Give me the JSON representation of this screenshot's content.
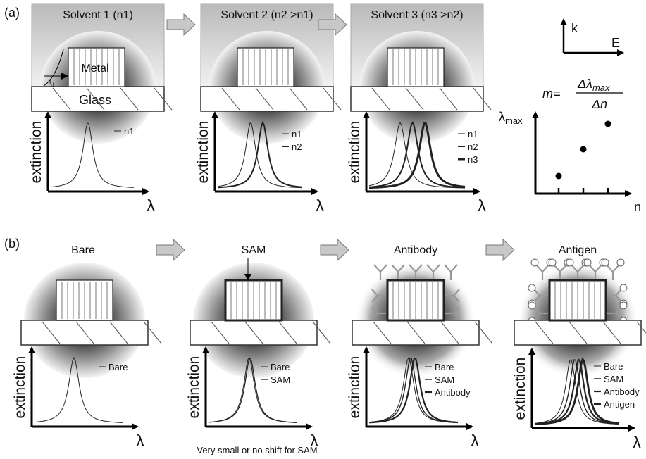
{
  "panel_a": {
    "label": "(a)",
    "metal_label": "Metal",
    "glass_label": "Glass",
    "decay_length": "l",
    "decay_length_sub": "d",
    "steps": [
      {
        "title": "Solvent 1 (n1)",
        "y_label": "extinction",
        "x_label": "λ",
        "legend": [
          "n1"
        ]
      },
      {
        "title": "Solvent 2 (n2 >n1)",
        "y_label": "extinction",
        "x_label": "λ",
        "legend": [
          "n1",
          "n2"
        ]
      },
      {
        "title": "Solvent 3 (n3 >n2)",
        "y_label": "extinction",
        "x_label": "λ",
        "legend": [
          "n1",
          "n2",
          "n3"
        ]
      }
    ],
    "axes": {
      "k": "k",
      "E": "E"
    },
    "formula": {
      "lhs": "m=",
      "num": "Δλ",
      "num_sub": "max",
      "den": "Δn"
    },
    "plot": {
      "y_label": "λ",
      "y_sub": "max",
      "x_label": "n"
    }
  },
  "panel_b": {
    "label": "(b)",
    "steps": [
      {
        "title": "Bare",
        "y_label": "extinction",
        "x_label": "λ",
        "legend": [
          "Bare"
        ]
      },
      {
        "title": "SAM",
        "y_label": "extinction",
        "x_label": "λ",
        "legend": [
          "Bare",
          "SAM"
        ]
      },
      {
        "title": "Antibody",
        "y_label": "extinction",
        "x_label": "λ",
        "legend": [
          "Bare",
          "SAM",
          "Antibody"
        ]
      },
      {
        "title": "Antigen",
        "y_label": "extinction",
        "x_label": "λ",
        "legend": [
          "Bare",
          "SAM",
          "Antibody",
          "Antigen"
        ]
      }
    ],
    "caption": "Very small or no shift for SAM"
  }
}
